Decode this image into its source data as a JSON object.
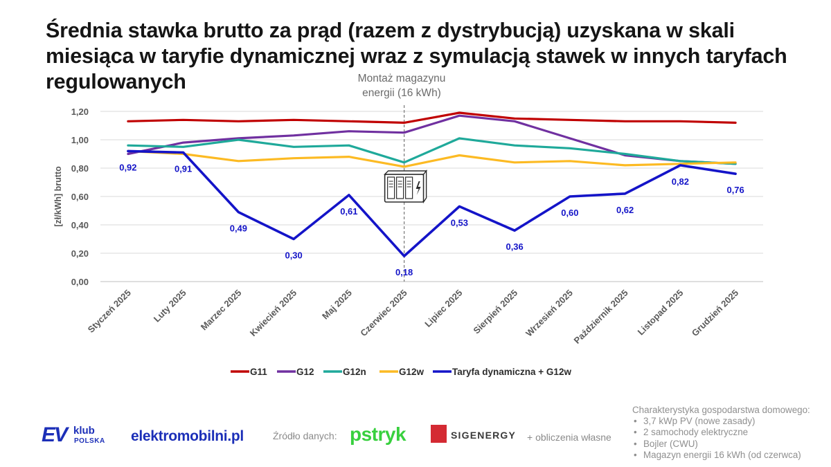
{
  "title": "Średnia stawka brutto za prąd (razem z dystrybucją) uzyskana w skali miesiąca w taryfie dynamicznej wraz z symulacją stawek w innych taryfach regulowanych",
  "annotation": {
    "line1": "Montaż magazynu",
    "line2": "energii (16 kWh)",
    "category": "Czerwiec 2025"
  },
  "chart_data": {
    "type": "line",
    "title": "Średnia stawka brutto za prąd (razem z dystrybucją) uzyskana w skali miesiąca w taryfie dynamicznej wraz z symulacją stawek w innych taryfach regulowanych",
    "ylabel": "[zł/kWh] brutto",
    "xlabel": "",
    "ylim": [
      0,
      1.2
    ],
    "yticks": [
      "0,00",
      "0,20",
      "0,40",
      "0,60",
      "0,80",
      "1,00",
      "1,20"
    ],
    "grid": true,
    "legend_position": "bottom",
    "categories": [
      "Styczeń 2025",
      "Luty 2025",
      "Marzec 2025",
      "Kwiecień 2025",
      "Maj 2025",
      "Czerwiec 2025",
      "Lipiec 2025",
      "Sierpień 2025",
      "Wrzesień 2025",
      "Październik 2025",
      "Listopad 2025",
      "Grudzień 2025"
    ],
    "series": [
      {
        "name": "G11",
        "color": "#c00000",
        "values": [
          1.13,
          1.14,
          1.13,
          1.14,
          1.13,
          1.12,
          1.19,
          1.15,
          1.14,
          1.13,
          1.13,
          1.12
        ]
      },
      {
        "name": "G12",
        "color": "#7030a0",
        "values": [
          0.9,
          0.98,
          1.01,
          1.03,
          1.06,
          1.05,
          1.17,
          1.13,
          1.01,
          0.89,
          0.85,
          0.83
        ]
      },
      {
        "name": "G12n",
        "color": "#1fa99a",
        "values": [
          0.96,
          0.95,
          1.0,
          0.95,
          0.96,
          0.84,
          1.01,
          0.96,
          0.94,
          0.9,
          0.85,
          0.83
        ]
      },
      {
        "name": "G12w",
        "color": "#fcba23",
        "values": [
          0.92,
          0.9,
          0.85,
          0.87,
          0.88,
          0.81,
          0.89,
          0.84,
          0.85,
          0.82,
          0.83,
          0.84
        ]
      },
      {
        "name": "Taryfa dynamiczna + G12w",
        "color": "#1414c8",
        "values": [
          0.92,
          0.91,
          0.49,
          0.3,
          0.61,
          0.18,
          0.53,
          0.36,
          0.6,
          0.62,
          0.82,
          0.76
        ],
        "labels": [
          "0,92",
          "0,91",
          "0,49",
          "0,30",
          "0,61",
          "0,18",
          "0,53",
          "0,36",
          "0,60",
          "0,62",
          "0,82",
          "0,76"
        ]
      }
    ]
  },
  "footer": {
    "ev_logo": "EV",
    "ev_klub": "klub",
    "ev_polska": "POLSKA",
    "elektromobilni": "elektromobilni.pl",
    "source_label": "Źródło danych:",
    "pstryk": "pstryk",
    "sigenergy": "SIGENERGY",
    "calc": "+ obliczenia własne"
  },
  "notes": {
    "heading": "Charakterystyka gospodarstwa domowego:",
    "items": [
      "3,7 kWp PV (nowe zasady)",
      "2 samochody elektryczne",
      "Bojler (CWU)",
      "Magazyn energii 16 kWh (od czerwca)"
    ]
  }
}
